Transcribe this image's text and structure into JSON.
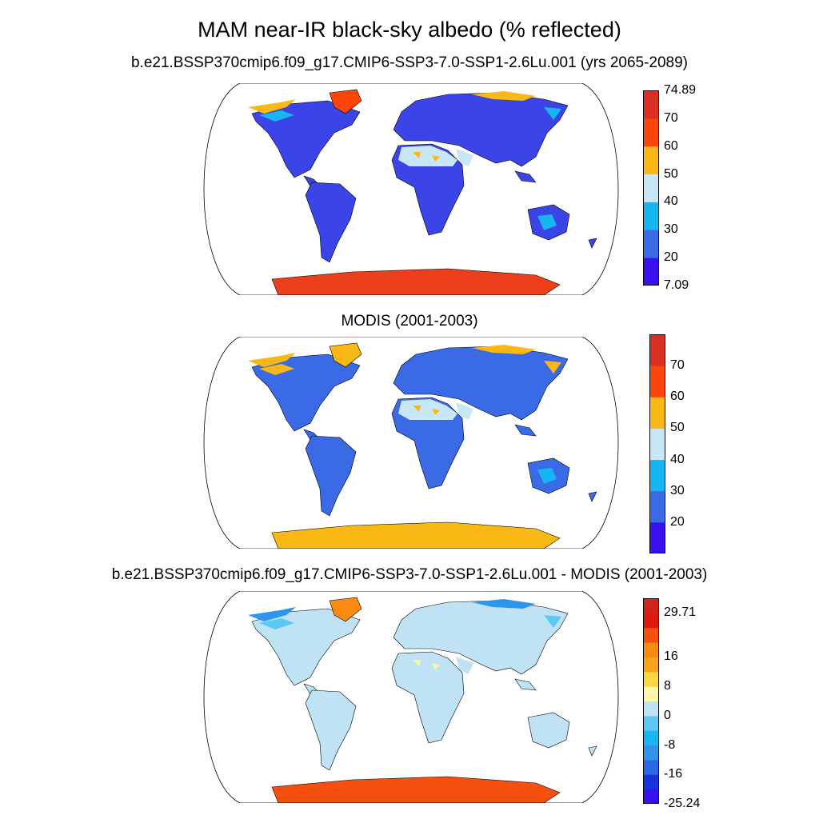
{
  "title": "MAM near-IR black-sky albedo (% reflected)",
  "panels": [
    {
      "id": "model",
      "title": "b.e21.BSSP370cmip6.f09_g17.CMIP6-SSP3-7.0-SSP1-2.6Lu.001 (yrs 2065-2089)",
      "colorbar": {
        "colors": [
          "#3a10f0",
          "#3b6ae6",
          "#16b6f2",
          "#c8e7f6",
          "#fab814",
          "#fa4608",
          "#da2f25"
        ],
        "labels": [
          "7.09",
          "20",
          "30",
          "40",
          "50",
          "60",
          "70",
          "74.89"
        ]
      },
      "regions": {
        "land": "#3b44e6",
        "desert": "#c8e7f6",
        "desert_spot": "#fab814",
        "greenland": "#fa4608",
        "antarctica": "#ee3f1c",
        "arctic_rim": "#fab814",
        "tundra": "#16b6f2",
        "australia_interior": "#16b6f2"
      }
    },
    {
      "id": "obs",
      "title": "MODIS (2001-2003)",
      "colorbar": {
        "colors": [
          "#3a10f0",
          "#3b6ae6",
          "#16b6f2",
          "#c8e7f6",
          "#fab814",
          "#fa4608",
          "#da2f25"
        ],
        "labels": [
          "",
          "20",
          "30",
          "40",
          "50",
          "60",
          "70",
          ""
        ]
      },
      "regions": {
        "land": "#3b6ae6",
        "desert": "#c8e7f6",
        "desert_spot": "#fab814",
        "greenland": "#fab814",
        "antarctica": "#fab814",
        "arctic_rim": "#fab814",
        "tundra": "#fab814",
        "australia_interior": "#16b6f2"
      }
    },
    {
      "id": "diff",
      "title": "b.e21.BSSP370cmip6.f09_g17.CMIP6-SSP3-7.0-SSP1-2.6Lu.001 - MODIS (2001-2003)",
      "colorbar": {
        "colors": [
          "#3a10f0",
          "#1830e0",
          "#2a66e8",
          "#2e95ee",
          "#18b6f2",
          "#5ec8f4",
          "#bfe2f4",
          "#fff5a6",
          "#fbd640",
          "#fba41a",
          "#fb8a12",
          "#f6500e",
          "#dc1a10",
          "#d2241c"
        ],
        "labels": [
          "-25.24",
          "",
          "-16",
          "",
          "-8",
          "",
          "0",
          "",
          "8",
          "",
          "16",
          "",
          "",
          "29.71"
        ]
      },
      "regions": {
        "land": "#bfe2f4",
        "desert": "#bfe2f4",
        "desert_spot": "#fff5a6",
        "greenland": "#fb8a12",
        "antarctica": "#f6500e",
        "arctic_rim": "#2e95ee",
        "tundra": "#5ec8f4",
        "australia_interior": "#bfe2f4"
      }
    }
  ]
}
